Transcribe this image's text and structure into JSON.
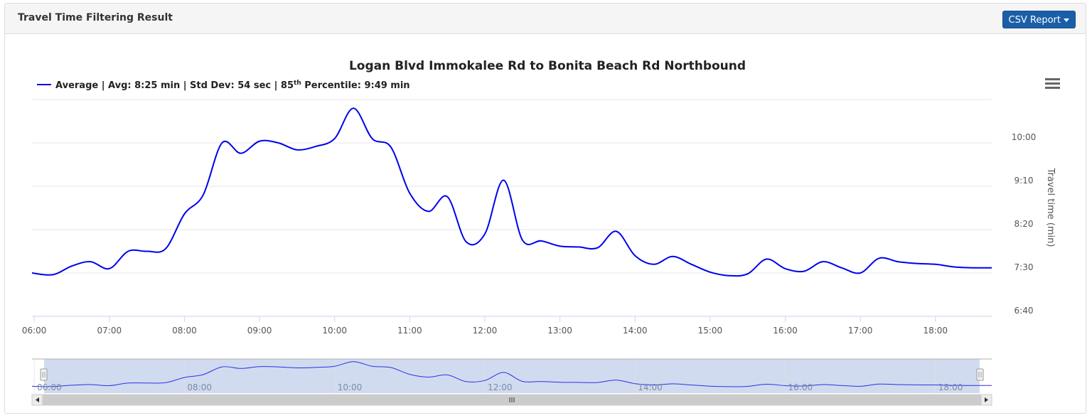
{
  "panel": {
    "title": "Travel Time Filtering Result",
    "csv_button_label": "CSV Report"
  },
  "chart_data": {
    "type": "line",
    "title": "Logan Blvd Immokalee Rd to Bonita Beach Rd Northbound",
    "legend": {
      "prefix": "Average | Avg: 8:25 min | Std Dev: 54 sec | 85",
      "superscript": "th",
      "suffix": " Percentile: 9:49 min"
    },
    "ylabel": "Travel time (min)",
    "y_ticks": [
      {
        "value": 400,
        "label": "6:40"
      },
      {
        "value": 450,
        "label": "7:30"
      },
      {
        "value": 500,
        "label": "8:20"
      },
      {
        "value": 550,
        "label": "9:10"
      },
      {
        "value": 600,
        "label": "10:00"
      }
    ],
    "x_ticks": [
      {
        "value": 6,
        "label": "06:00"
      },
      {
        "value": 7,
        "label": "07:00"
      },
      {
        "value": 8,
        "label": "08:00"
      },
      {
        "value": 9,
        "label": "09:00"
      },
      {
        "value": 10,
        "label": "10:00"
      },
      {
        "value": 11,
        "label": "11:00"
      },
      {
        "value": 12,
        "label": "12:00"
      },
      {
        "value": 13,
        "label": "13:00"
      },
      {
        "value": 14,
        "label": "14:00"
      },
      {
        "value": 15,
        "label": "15:00"
      },
      {
        "value": 16,
        "label": "16:00"
      },
      {
        "value": 17,
        "label": "17:00"
      },
      {
        "value": 18,
        "label": "18:00"
      }
    ],
    "navigator_ticks": [
      {
        "value": 6,
        "label": "06:00"
      },
      {
        "value": 8,
        "label": "08:00"
      },
      {
        "value": 10,
        "label": "10:00"
      },
      {
        "value": 12,
        "label": "12:00"
      },
      {
        "value": 14,
        "label": "14:00"
      },
      {
        "value": 16,
        "label": "16:00"
      },
      {
        "value": 18,
        "label": "18:00"
      }
    ],
    "xlim": [
      5.97,
      18.75
    ],
    "ylim": [
      400,
      650
    ],
    "series": [
      {
        "name": "Average",
        "color": "#0000ee",
        "points": [
          [
            5.97,
            450
          ],
          [
            6.25,
            448
          ],
          [
            6.5,
            458
          ],
          [
            6.75,
            463
          ],
          [
            7.0,
            455
          ],
          [
            7.25,
            475
          ],
          [
            7.5,
            475
          ],
          [
            7.75,
            478
          ],
          [
            8.0,
            518
          ],
          [
            8.25,
            540
          ],
          [
            8.5,
            600
          ],
          [
            8.75,
            588
          ],
          [
            9.0,
            602
          ],
          [
            9.25,
            600
          ],
          [
            9.5,
            592
          ],
          [
            9.75,
            596
          ],
          [
            10.0,
            605
          ],
          [
            10.25,
            640
          ],
          [
            10.5,
            605
          ],
          [
            10.75,
            595
          ],
          [
            11.0,
            542
          ],
          [
            11.25,
            521
          ],
          [
            11.5,
            538
          ],
          [
            11.75,
            486
          ],
          [
            12.0,
            495
          ],
          [
            12.25,
            557
          ],
          [
            12.5,
            488
          ],
          [
            12.75,
            487
          ],
          [
            13.0,
            481
          ],
          [
            13.25,
            480
          ],
          [
            13.5,
            479
          ],
          [
            13.75,
            498
          ],
          [
            14.0,
            470
          ],
          [
            14.25,
            460
          ],
          [
            14.5,
            469
          ],
          [
            14.75,
            460
          ],
          [
            15.0,
            451
          ],
          [
            15.25,
            447
          ],
          [
            15.5,
            449
          ],
          [
            15.75,
            466
          ],
          [
            16.0,
            455
          ],
          [
            16.25,
            452
          ],
          [
            16.5,
            463
          ],
          [
            16.75,
            456
          ],
          [
            17.0,
            450
          ],
          [
            17.25,
            467
          ],
          [
            17.5,
            463
          ],
          [
            17.75,
            461
          ],
          [
            18.0,
            460
          ],
          [
            18.25,
            457
          ],
          [
            18.5,
            456
          ],
          [
            18.75,
            456
          ]
        ]
      }
    ]
  },
  "icons": {
    "menu": "hamburger-menu-icon",
    "scroll_left": "chevron-left-icon",
    "scroll_right": "chevron-right-icon",
    "scroll_grip": "grip-icon"
  }
}
